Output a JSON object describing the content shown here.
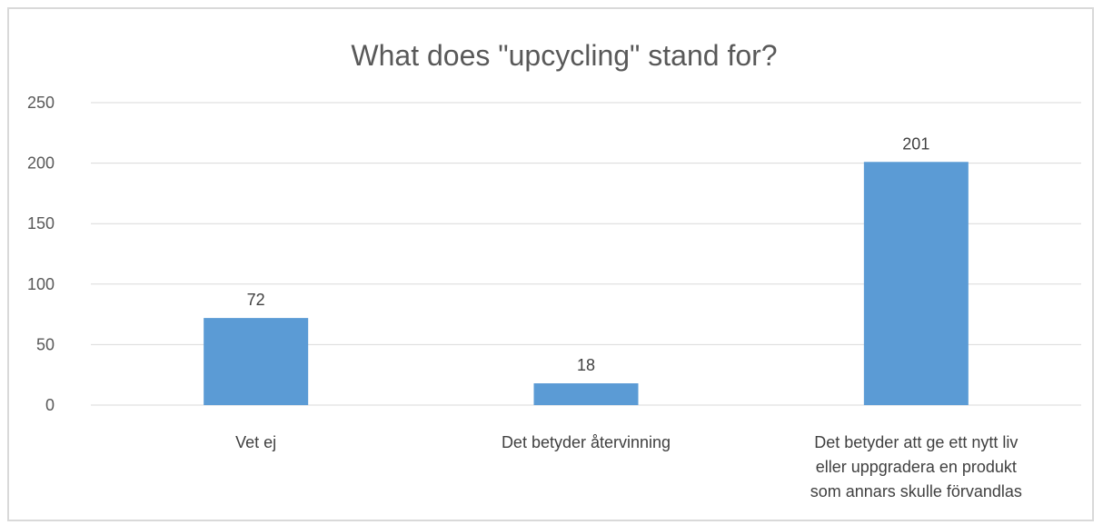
{
  "chart_data": {
    "type": "bar",
    "title": "What does \"upcycling\" stand for?",
    "categories": [
      [
        "Vet ej"
      ],
      [
        "Det betyder återvinning"
      ],
      [
        "Det betyder att ge ett nytt liv",
        "eller uppgradera en produkt",
        "som annars skulle förvandlas"
      ]
    ],
    "values": [
      72,
      18,
      201
    ],
    "data_labels": [
      "72",
      "18",
      "201"
    ],
    "ylim": [
      0,
      250
    ],
    "yticks": [
      0,
      50,
      100,
      150,
      200,
      250
    ],
    "grid": true,
    "bar_color": "#5b9bd5",
    "legend": "none"
  }
}
